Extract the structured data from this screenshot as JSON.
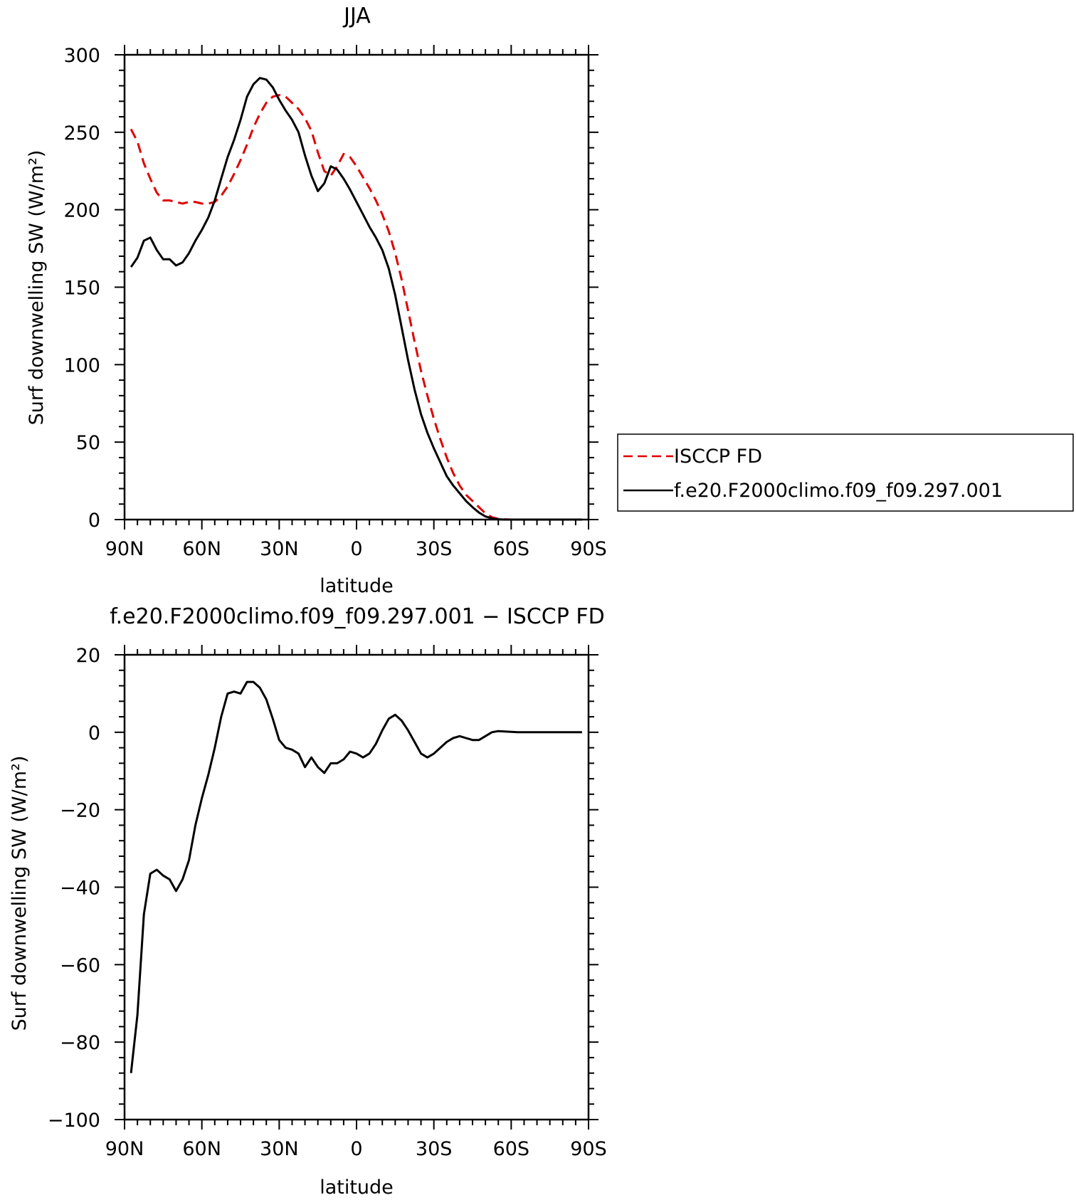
{
  "figure": {
    "top_title": "JJA",
    "bottom_title": "f.e20.F2000climo.f09_f09.297.001 − ISCCP FD"
  },
  "chart_data": [
    {
      "type": "line",
      "title": "JJA",
      "xlabel": "latitude",
      "ylabel": "Surf downwelling SW (W/m²)",
      "xlim": [
        90,
        -90
      ],
      "ylim": [
        0,
        300
      ],
      "xticks": [
        90,
        60,
        30,
        0,
        -30,
        -60,
        -90
      ],
      "xtick_labels": [
        "90N",
        "60N",
        "30N",
        "0",
        "30S",
        "60S",
        "90S"
      ],
      "yticks": [
        0,
        50,
        100,
        150,
        200,
        250,
        300
      ],
      "ytick_labels": [
        "0",
        "50",
        "100",
        "150",
        "200",
        "250",
        "300"
      ],
      "grid": false,
      "legend_position": "right",
      "series": [
        {
          "name": "ISCCP FD",
          "color": "#e00000",
          "dash": "dashed",
          "x": [
            87.5,
            85,
            82.5,
            80,
            77.5,
            75,
            72.5,
            70,
            67.5,
            65,
            62.5,
            60,
            57.5,
            55,
            52.5,
            50,
            47.5,
            45,
            42.5,
            40,
            37.5,
            35,
            32.5,
            30,
            27.5,
            25,
            22.5,
            20,
            17.5,
            15,
            12.5,
            10,
            7.5,
            5,
            2.5,
            0,
            -2.5,
            -5,
            -7.5,
            -10,
            -12.5,
            -15,
            -17.5,
            -20,
            -22.5,
            -25,
            -27.5,
            -30,
            -32.5,
            -35,
            -37.5,
            -40,
            -42.5,
            -45,
            -47.5,
            -50,
            -52.5,
            -55,
            -57.5,
            -60,
            -62.5,
            -65,
            -67.5,
            -70,
            -72.5,
            -75,
            -77.5,
            -80,
            -82.5,
            -85,
            -87.5
          ],
          "y": [
            252,
            244,
            230,
            220,
            211,
            206,
            206,
            205,
            204,
            205,
            205,
            204,
            204,
            205,
            209,
            215,
            223,
            232,
            242,
            253,
            262,
            269,
            273,
            274,
            273,
            269,
            265,
            259,
            251,
            237,
            225,
            222,
            228,
            236,
            234,
            228,
            221,
            214,
            206,
            197,
            186,
            172,
            155,
            135,
            115,
            96,
            80,
            65,
            52,
            40,
            30,
            22,
            16,
            12,
            8,
            4,
            1.5,
            0.5,
            0.2,
            0,
            0,
            0,
            0,
            0,
            0,
            0,
            0,
            0,
            0,
            0,
            0
          ]
        },
        {
          "name": "f.e20.F2000climo.f09_f09.297.001",
          "color": "#000000",
          "dash": "solid",
          "x": [
            87.5,
            85,
            82.5,
            80,
            77.5,
            75,
            72.5,
            70,
            67.5,
            65,
            62.5,
            60,
            57.5,
            55,
            52.5,
            50,
            47.5,
            45,
            42.5,
            40,
            37.5,
            35,
            32.5,
            30,
            27.5,
            25,
            22.5,
            20,
            17.5,
            15,
            12.5,
            10,
            7.5,
            5,
            2.5,
            0,
            -2.5,
            -5,
            -7.5,
            -10,
            -12.5,
            -15,
            -17.5,
            -20,
            -22.5,
            -25,
            -27.5,
            -30,
            -32.5,
            -35,
            -37.5,
            -40,
            -42.5,
            -45,
            -47.5,
            -50,
            -52.5,
            -55,
            -57.5,
            -60,
            -62.5,
            -65,
            -67.5,
            -70,
            -72.5,
            -75,
            -77.5,
            -80,
            -82.5,
            -85,
            -87.5
          ],
          "y": [
            163,
            169,
            180,
            182,
            174,
            168,
            168,
            164,
            166,
            172,
            180,
            187,
            195,
            206,
            220,
            234,
            245,
            258,
            273,
            281,
            285,
            284,
            279,
            271,
            264,
            258,
            250,
            235,
            222,
            212,
            217,
            228,
            226,
            220,
            213,
            205,
            197,
            189,
            182,
            174,
            162,
            145,
            124,
            103,
            84,
            68,
            56,
            46,
            37,
            28,
            22,
            17,
            12,
            8,
            4.5,
            2,
            0.8,
            0.2,
            0,
            0,
            0,
            0,
            0,
            0,
            0,
            0,
            0,
            0,
            0,
            0,
            0
          ]
        }
      ]
    },
    {
      "type": "line",
      "title": "f.e20.F2000climo.f09_f09.297.001 − ISCCP FD",
      "xlabel": "latitude",
      "ylabel": "Surf downwelling SW (W/m²)",
      "xlim": [
        90,
        -90
      ],
      "ylim": [
        -100,
        20
      ],
      "xticks": [
        90,
        60,
        30,
        0,
        -30,
        -60,
        -90
      ],
      "xtick_labels": [
        "90N",
        "60N",
        "30N",
        "0",
        "30S",
        "60S",
        "90S"
      ],
      "yticks": [
        -100,
        -80,
        -60,
        -40,
        -20,
        0,
        20
      ],
      "ytick_labels": [
        "−100",
        "−80",
        "−60",
        "−40",
        "−20",
        "0",
        "20"
      ],
      "grid": false,
      "series": [
        {
          "color": "#000000",
          "dash": "solid",
          "x": [
            87.5,
            85,
            82.5,
            80,
            77.5,
            75,
            72.5,
            70,
            67.5,
            65,
            62.5,
            60,
            57.5,
            55,
            52.5,
            50,
            47.5,
            45,
            42.5,
            40,
            37.5,
            35,
            32.5,
            30,
            27.5,
            25,
            22.5,
            20,
            17.5,
            15,
            12.5,
            10,
            7.5,
            5,
            2.5,
            0,
            -2.5,
            -5,
            -7.5,
            -10,
            -12.5,
            -15,
            -17.5,
            -20,
            -22.5,
            -25,
            -27.5,
            -30,
            -32.5,
            -35,
            -37.5,
            -40,
            -42.5,
            -45,
            -47.5,
            -50,
            -52.5,
            -55,
            -57.5,
            -60,
            -62.5,
            -65,
            -67.5,
            -70,
            -72.5,
            -75,
            -77.5,
            -80,
            -82.5,
            -85,
            -87.5
          ],
          "y": [
            -88,
            -73,
            -47,
            -36.5,
            -35.5,
            -37,
            -38,
            -41,
            -38,
            -33,
            -24,
            -17,
            -11,
            -4,
            4,
            10,
            10.5,
            10,
            13,
            13,
            11.5,
            8.5,
            3.5,
            -2,
            -4,
            -4.5,
            -5.5,
            -9,
            -6.5,
            -9,
            -10.5,
            -8,
            -8,
            -7,
            -5,
            -5.5,
            -6.5,
            -5.5,
            -3,
            0.5,
            3.5,
            4.5,
            3,
            0.5,
            -2.5,
            -5.5,
            -6.5,
            -5.5,
            -4,
            -2.5,
            -1.5,
            -1,
            -1.5,
            -2,
            -2,
            -1,
            0,
            0.3,
            0.2,
            0.1,
            0,
            0,
            0,
            0,
            0,
            0,
            0,
            0,
            0,
            0,
            0
          ]
        }
      ]
    }
  ]
}
